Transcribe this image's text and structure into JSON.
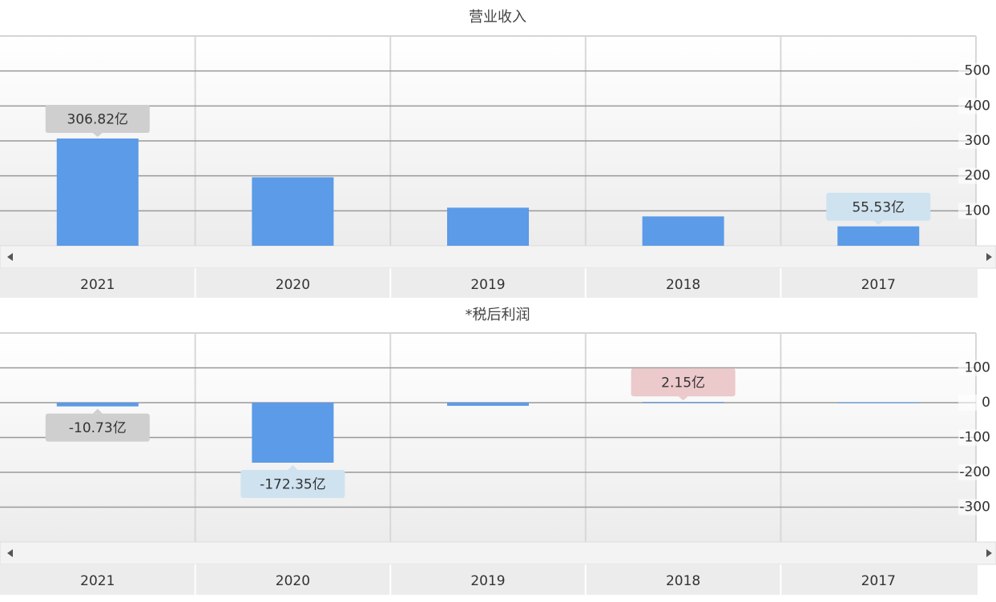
{
  "chart_data": [
    {
      "type": "bar",
      "title": "营业收入",
      "categories": [
        "2021",
        "2020",
        "2019",
        "2018",
        "2017"
      ],
      "values": [
        306.82,
        196,
        109,
        84,
        55.53
      ],
      "value_labels": [
        "306.82亿",
        null,
        null,
        null,
        "55.53亿"
      ],
      "value_label_colors": [
        "#cfcfcf",
        null,
        null,
        null,
        "#cfe2f0"
      ],
      "color": "#5b9be8",
      "ylim": [
        0,
        600
      ],
      "yticks": [
        100,
        200,
        300,
        400,
        500
      ],
      "grid": true
    },
    {
      "type": "bar",
      "title": "*税后利润",
      "categories": [
        "2021",
        "2020",
        "2019",
        "2018",
        "2017"
      ],
      "values": [
        -10.73,
        -172.35,
        -9,
        2.15,
        1
      ],
      "value_labels": [
        "-10.73亿",
        "-172.35亿",
        null,
        "2.15亿",
        null
      ],
      "value_label_colors": [
        "#cfcfcf",
        "#cfe2f0",
        null,
        "#ecc9cb",
        null
      ],
      "color": "#5b9be8",
      "ylim": [
        -400,
        200
      ],
      "yticks": [
        -300,
        -200,
        -100,
        0,
        100
      ],
      "grid": true
    }
  ]
}
